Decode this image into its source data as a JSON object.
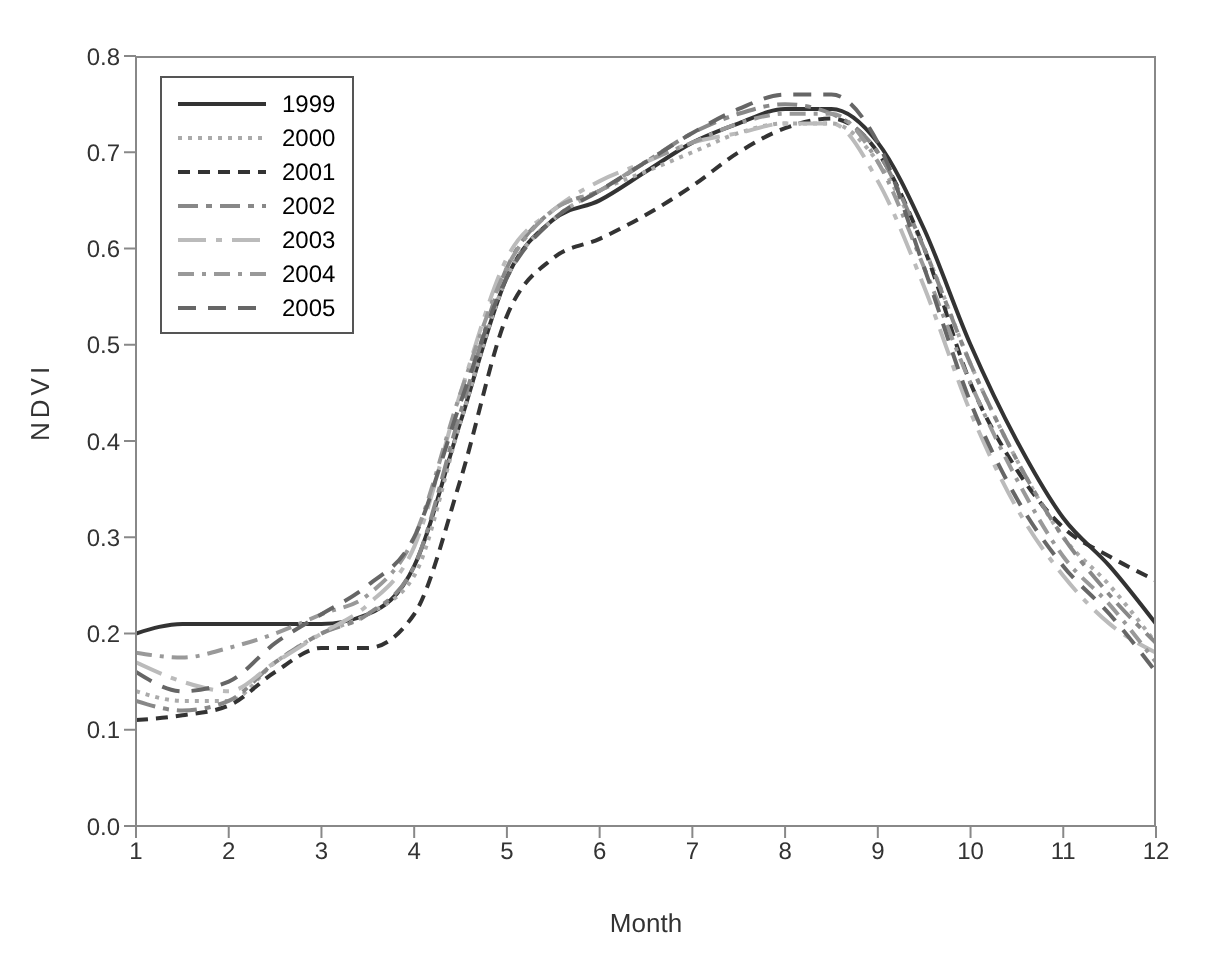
{
  "chart_data": {
    "type": "line",
    "xlabel": "Month",
    "ylabel": "NDVI",
    "x": [
      1,
      1.5,
      2,
      2.5,
      3,
      3.5,
      4,
      4.5,
      5,
      5.5,
      6,
      6.5,
      7,
      7.5,
      8,
      8.5,
      9,
      9.5,
      10,
      10.5,
      11,
      11.5,
      12
    ],
    "xlim": [
      1,
      12
    ],
    "xticks": [
      1,
      2,
      3,
      4,
      5,
      6,
      7,
      8,
      9,
      10,
      11,
      12
    ],
    "ylim": [
      0,
      0.8
    ],
    "yticks": [
      {
        "value": 0,
        "label": "0.0"
      },
      0.1,
      0.2,
      0.3,
      0.4,
      0.5,
      0.6,
      0.7,
      0.8
    ],
    "grid": false,
    "legend": "top left",
    "marker": "none",
    "series": [
      {
        "name": "1999",
        "color": "#333333",
        "line_style": "solid",
        "values": [
          0.2,
          0.21,
          0.21,
          0.21,
          0.21,
          0.22,
          0.27,
          0.42,
          0.57,
          0.63,
          0.65,
          0.68,
          0.71,
          0.73,
          0.745,
          0.745,
          0.71,
          0.62,
          0.5,
          0.4,
          0.32,
          0.27,
          0.21
        ]
      },
      {
        "name": "2000",
        "color": "#aaaaaa",
        "line_style": "dotted",
        "values": [
          0.14,
          0.13,
          0.13,
          0.17,
          0.2,
          0.22,
          0.26,
          0.42,
          0.57,
          0.63,
          0.66,
          0.68,
          0.7,
          0.72,
          0.73,
          0.73,
          0.69,
          0.6,
          0.48,
          0.38,
          0.3,
          0.25,
          0.19
        ]
      },
      {
        "name": "2001",
        "color": "#333333",
        "line_style": "dashed",
        "values": [
          0.11,
          0.115,
          0.125,
          0.16,
          0.185,
          0.185,
          0.22,
          0.36,
          0.53,
          0.59,
          0.61,
          0.635,
          0.665,
          0.7,
          0.725,
          0.735,
          0.7,
          0.6,
          0.46,
          0.37,
          0.31,
          0.28,
          0.255
        ]
      },
      {
        "name": "2002",
        "color": "#888888",
        "line_style": "dashed",
        "values": [
          0.13,
          0.12,
          0.13,
          0.17,
          0.2,
          0.22,
          0.27,
          0.43,
          0.58,
          0.64,
          0.66,
          0.69,
          0.72,
          0.74,
          0.75,
          0.74,
          0.7,
          0.6,
          0.48,
          0.38,
          0.3,
          0.24,
          0.19
        ]
      },
      {
        "name": "2003",
        "color": "#bbbbbb",
        "line_style": "dashed",
        "values": [
          0.17,
          0.15,
          0.14,
          0.17,
          0.2,
          0.23,
          0.29,
          0.45,
          0.59,
          0.64,
          0.67,
          0.69,
          0.71,
          0.72,
          0.73,
          0.73,
          0.67,
          0.56,
          0.43,
          0.33,
          0.26,
          0.21,
          0.18
        ]
      },
      {
        "name": "2004",
        "color": "#999999",
        "line_style": "dashed",
        "values": [
          0.18,
          0.175,
          0.185,
          0.2,
          0.22,
          0.24,
          0.3,
          0.45,
          0.58,
          0.64,
          0.66,
          0.69,
          0.71,
          0.73,
          0.74,
          0.74,
          0.69,
          0.58,
          0.46,
          0.36,
          0.28,
          0.23,
          0.17
        ]
      },
      {
        "name": "2005",
        "color": "#666666",
        "line_style": "dashed",
        "values": [
          0.16,
          0.14,
          0.15,
          0.19,
          0.22,
          0.25,
          0.3,
          0.44,
          0.57,
          0.63,
          0.66,
          0.69,
          0.72,
          0.745,
          0.76,
          0.76,
          0.71,
          0.58,
          0.44,
          0.34,
          0.27,
          0.22,
          0.16
        ]
      }
    ]
  }
}
